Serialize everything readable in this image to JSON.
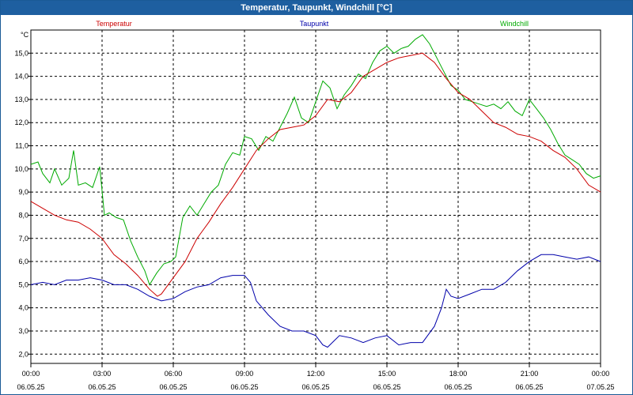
{
  "window": {
    "title": "Temperatur, Taupunkt, Windchill [°C]"
  },
  "chart_data": {
    "type": "line",
    "title": "Temperatur, Taupunkt, Windchill [°C]",
    "ylabel": "°C",
    "xlabel": "",
    "ylim": [
      1.6,
      16.0
    ],
    "xlim": [
      0,
      24
    ],
    "grid": true,
    "legend_position": "top",
    "yticks": [
      "2,0",
      "3,0",
      "4,0",
      "5,0",
      "6,0",
      "7,0",
      "8,0",
      "9,0",
      "10,0",
      "11,0",
      "12,0",
      "13,0",
      "14,0",
      "15,0"
    ],
    "xticks": [
      {
        "time": "00:00",
        "date": "06.05.25"
      },
      {
        "time": "03:00",
        "date": "06.05.25"
      },
      {
        "time": "06:00",
        "date": "06.05.25"
      },
      {
        "time": "09:00",
        "date": "06.05.25"
      },
      {
        "time": "12:00",
        "date": "06.05.25"
      },
      {
        "time": "15:00",
        "date": "06.05.25"
      },
      {
        "time": "18:00",
        "date": "06.05.25"
      },
      {
        "time": "21:00",
        "date": "06.05.25"
      },
      {
        "time": "00:00",
        "date": "07.05.25"
      }
    ],
    "series": [
      {
        "name": "Temperatur",
        "color": "#cc0000",
        "x": [
          0,
          0.5,
          1,
          1.5,
          2,
          2.5,
          3,
          3.5,
          4,
          4.5,
          5,
          5.33,
          5.5,
          6,
          6.5,
          7,
          7.5,
          8,
          8.5,
          9,
          9.5,
          10,
          10.5,
          11,
          11.5,
          12,
          12.5,
          13,
          13.5,
          14,
          14.5,
          15,
          15.5,
          16,
          16.5,
          17,
          17.5,
          18,
          18.5,
          19,
          19.5,
          20,
          20.5,
          21,
          21.5,
          22,
          22.5,
          23,
          23.5,
          24
        ],
        "values": [
          8.6,
          8.3,
          8.0,
          7.8,
          7.7,
          7.4,
          7.0,
          6.3,
          5.9,
          5.4,
          4.8,
          4.5,
          4.6,
          5.3,
          6.0,
          7.0,
          7.7,
          8.5,
          9.2,
          10.0,
          10.8,
          11.3,
          11.7,
          11.8,
          11.9,
          12.3,
          13.0,
          12.9,
          13.3,
          14.0,
          14.3,
          14.6,
          14.8,
          14.9,
          15.0,
          14.6,
          13.9,
          13.3,
          13.0,
          12.5,
          12.0,
          11.8,
          11.5,
          11.4,
          11.2,
          10.8,
          10.5,
          10.0,
          9.3,
          9.0
        ]
      },
      {
        "name": "Taupunkt",
        "color": "#0000aa",
        "x": [
          0,
          0.5,
          1,
          1.5,
          2,
          2.5,
          3,
          3.5,
          4,
          4.5,
          5,
          5.5,
          6,
          6.5,
          7,
          7.5,
          8,
          8.5,
          9,
          9.25,
          9.5,
          10,
          10.5,
          11,
          11.5,
          12,
          12.3,
          12.5,
          13,
          13.5,
          14,
          14.5,
          15,
          15.5,
          16,
          16.5,
          17,
          17.3,
          17.5,
          17.7,
          18,
          18.5,
          19,
          19.5,
          20,
          20.5,
          21,
          21.5,
          22,
          22.5,
          23,
          23.5,
          24
        ],
        "values": [
          5.0,
          5.1,
          5.0,
          5.2,
          5.2,
          5.3,
          5.2,
          5.0,
          5.0,
          4.8,
          4.5,
          4.3,
          4.4,
          4.7,
          4.9,
          5.0,
          5.3,
          5.4,
          5.4,
          5.1,
          4.3,
          3.7,
          3.2,
          3.0,
          3.0,
          2.8,
          2.4,
          2.3,
          2.8,
          2.7,
          2.5,
          2.7,
          2.8,
          2.4,
          2.5,
          2.5,
          3.2,
          4.0,
          4.8,
          4.5,
          4.4,
          4.6,
          4.8,
          4.8,
          5.1,
          5.6,
          6.0,
          6.3,
          6.3,
          6.2,
          6.1,
          6.2,
          6.0
        ]
      },
      {
        "name": "Windchill",
        "color": "#00aa00",
        "x": [
          0,
          0.3,
          0.5,
          0.8,
          1,
          1.3,
          1.6,
          1.8,
          2,
          2.3,
          2.6,
          2.9,
          3.1,
          3.3,
          3.6,
          3.9,
          4.2,
          4.5,
          4.8,
          5.0,
          5.3,
          5.6,
          5.9,
          6.1,
          6.4,
          6.7,
          7.0,
          7.3,
          7.6,
          7.9,
          8.2,
          8.5,
          8.8,
          9.0,
          9.3,
          9.6,
          9.9,
          10.2,
          10.5,
          10.8,
          11.1,
          11.4,
          11.7,
          12.0,
          12.3,
          12.6,
          12.9,
          13.2,
          13.5,
          13.8,
          14.1,
          14.4,
          14.7,
          15.0,
          15.3,
          15.6,
          15.9,
          16.2,
          16.5,
          16.8,
          17.1,
          17.4,
          17.7,
          18.0,
          18.3,
          18.6,
          18.9,
          19.2,
          19.5,
          19.8,
          20.1,
          20.4,
          20.7,
          21.0,
          21.3,
          21.6,
          21.9,
          22.2,
          22.5,
          22.8,
          23.1,
          23.4,
          23.7,
          24.0
        ],
        "values": [
          10.2,
          10.3,
          9.8,
          9.4,
          10.0,
          9.3,
          9.6,
          10.8,
          9.3,
          9.4,
          9.2,
          10.1,
          8.0,
          8.1,
          7.9,
          7.8,
          6.9,
          6.2,
          5.6,
          5.0,
          5.5,
          5.9,
          6.0,
          6.2,
          7.9,
          8.4,
          8.0,
          8.5,
          9.0,
          9.3,
          10.2,
          10.7,
          10.6,
          11.4,
          11.3,
          10.8,
          11.4,
          11.2,
          11.8,
          12.4,
          13.1,
          12.2,
          12.0,
          12.9,
          13.8,
          13.5,
          12.6,
          13.2,
          13.6,
          14.1,
          13.9,
          14.6,
          15.1,
          15.3,
          15.0,
          15.2,
          15.3,
          15.6,
          15.8,
          15.4,
          14.8,
          14.2,
          13.6,
          13.4,
          13.0,
          12.9,
          12.8,
          12.7,
          12.8,
          12.6,
          12.9,
          12.5,
          12.3,
          13.0,
          12.6,
          12.2,
          11.7,
          11.1,
          10.6,
          10.4,
          10.2,
          9.8,
          9.6,
          9.7
        ]
      }
    ]
  }
}
